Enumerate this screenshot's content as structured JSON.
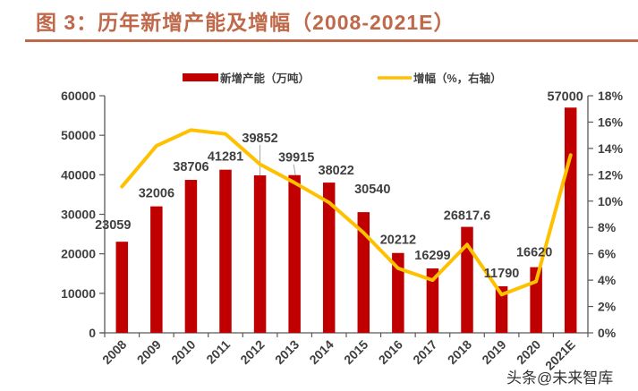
{
  "header": {
    "figure_title": "图 3：历年新增产能及增幅（2008-2021E）"
  },
  "watermark": "头条@未来智库",
  "colors": {
    "bar": "#c00000",
    "line": "#ffc000",
    "title": "#c0694a",
    "axis": "#595959",
    "text": "#404040"
  },
  "chart_data": {
    "type": "bar+line",
    "title": "历年新增产能及增幅（2008-2021E）",
    "categories": [
      "2008",
      "2009",
      "2010",
      "2011",
      "2012",
      "2013",
      "2014",
      "2015",
      "2016",
      "2017",
      "2018",
      "2019",
      "2020",
      "2021E"
    ],
    "series": [
      {
        "name": "新增产能（万吨）",
        "type": "bar",
        "axis": "left",
        "values": [
          23059,
          32006,
          38706,
          41281,
          39852,
          39915,
          38022,
          30540,
          20212,
          16299,
          26817.6,
          11790,
          16620,
          57000
        ],
        "data_labels": [
          "23059",
          "32006",
          "38706",
          "41281",
          "39852",
          "39915",
          "38022",
          "30540",
          "20212",
          "16299",
          "26817.6",
          "11790",
          "16620",
          "57000"
        ]
      },
      {
        "name": "增幅（%，右轴）",
        "type": "line",
        "axis": "right",
        "values": [
          11.1,
          14.2,
          15.4,
          15.1,
          12.8,
          11.4,
          9.9,
          7.6,
          4.9,
          4.0,
          6.7,
          2.9,
          3.9,
          13.5
        ]
      }
    ],
    "left_axis": {
      "ylim": [
        0,
        60000
      ],
      "ticks": [
        0,
        10000,
        20000,
        30000,
        40000,
        50000,
        60000
      ],
      "tick_labels": [
        "0",
        "10000",
        "20000",
        "30000",
        "40000",
        "50000",
        "60000"
      ]
    },
    "right_axis": {
      "ylim": [
        0,
        18
      ],
      "ticks": [
        0,
        2,
        4,
        6,
        8,
        10,
        12,
        14,
        16,
        18
      ],
      "tick_labels": [
        "0%",
        "2%",
        "4%",
        "6%",
        "8%",
        "10%",
        "12%",
        "14%",
        "16%",
        "18%"
      ]
    },
    "xlabel": "",
    "ylabel": "",
    "grid": false,
    "legend": {
      "placement": "top-center",
      "entries": [
        "新增产能（万吨）",
        "增幅（%，右轴）"
      ]
    }
  }
}
